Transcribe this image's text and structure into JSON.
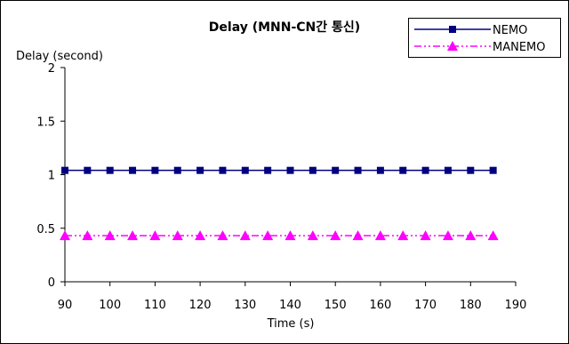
{
  "chart_data": {
    "type": "line",
    "title": "Delay (MNN-CN간 통신)",
    "ylabel": "Delay (second)",
    "xlabel": "Time (s)",
    "xlim": [
      90,
      190
    ],
    "ylim": [
      0,
      2
    ],
    "x_ticks": [
      "90",
      "100",
      "110",
      "120",
      "130",
      "140",
      "150",
      "160",
      "170",
      "180",
      "190"
    ],
    "y_ticks": [
      "0",
      "0.5",
      "1",
      "1.5",
      "2"
    ],
    "grid": false,
    "legend_position": "top-right",
    "x": [
      90,
      95,
      100,
      105,
      110,
      115,
      120,
      125,
      130,
      135,
      140,
      145,
      150,
      155,
      160,
      165,
      170,
      175,
      180,
      185
    ],
    "series": [
      {
        "name": "NEMO",
        "color": "#000080",
        "marker": "square",
        "line_style": "solid",
        "values": [
          1.04,
          1.04,
          1.04,
          1.04,
          1.04,
          1.04,
          1.04,
          1.04,
          1.04,
          1.04,
          1.04,
          1.04,
          1.04,
          1.04,
          1.04,
          1.04,
          1.04,
          1.04,
          1.04,
          1.04
        ]
      },
      {
        "name": "MANEMO",
        "color": "#ff00ff",
        "marker": "triangle",
        "line_style": "dash-dot-dot",
        "values": [
          0.43,
          0.43,
          0.43,
          0.43,
          0.43,
          0.43,
          0.43,
          0.43,
          0.43,
          0.43,
          0.43,
          0.43,
          0.43,
          0.43,
          0.43,
          0.43,
          0.43,
          0.43,
          0.43,
          0.43
        ]
      }
    ]
  }
}
